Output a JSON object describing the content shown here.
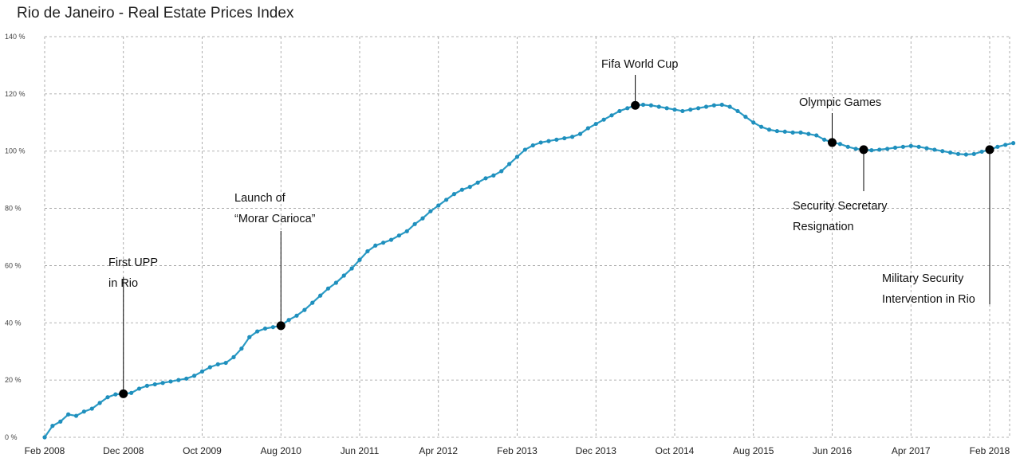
{
  "chart_data": {
    "type": "line",
    "title": "Rio de Janeiro - Real Estate Prices Index",
    "xlabel": "",
    "ylabel": "",
    "ylim": [
      0,
      140
    ],
    "x_range": [
      "Feb 2008",
      "Jun 2018"
    ],
    "grid": true,
    "line_color": "#2a9ac4",
    "y_ticks": [
      "0 %",
      "20 %",
      "40 %",
      "60 %",
      "80 %",
      "100 %",
      "120 %",
      "140 %"
    ],
    "x_ticks": [
      {
        "label": "Feb 2008",
        "x": "2008-02"
      },
      {
        "label": "Dec 2008",
        "x": "2008-12"
      },
      {
        "label": "Oct 2009",
        "x": "2009-10"
      },
      {
        "label": "Aug 2010",
        "x": "2010-08"
      },
      {
        "label": "Jun 2011",
        "x": "2011-06"
      },
      {
        "label": "Apr 2012",
        "x": "2012-04"
      },
      {
        "label": "Feb 2013",
        "x": "2013-02"
      },
      {
        "label": "Dec 2013",
        "x": "2013-12"
      },
      {
        "label": "Oct 2014",
        "x": "2014-10"
      },
      {
        "label": "Aug 2015",
        "x": "2015-08"
      },
      {
        "label": "Jun 2016",
        "x": "2016-06"
      },
      {
        "label": "Apr 2017",
        "x": "2017-04"
      },
      {
        "label": "Feb 2018",
        "x": "2018-02"
      }
    ],
    "series": [
      {
        "points": [
          [
            "2008-02",
            0
          ],
          [
            "2008-03",
            4
          ],
          [
            "2008-04",
            5.5
          ],
          [
            "2008-05",
            8
          ],
          [
            "2008-06",
            7.5
          ],
          [
            "2008-07",
            9
          ],
          [
            "2008-08",
            10
          ],
          [
            "2008-09",
            12
          ],
          [
            "2008-10",
            14
          ],
          [
            "2008-11",
            15
          ],
          [
            "2008-12",
            15.2
          ],
          [
            "2009-01",
            15.5
          ],
          [
            "2009-02",
            17
          ],
          [
            "2009-03",
            18
          ],
          [
            "2009-04",
            18.5
          ],
          [
            "2009-05",
            19
          ],
          [
            "2009-06",
            19.5
          ],
          [
            "2009-07",
            20
          ],
          [
            "2009-08",
            20.5
          ],
          [
            "2009-09",
            21.5
          ],
          [
            "2009-10",
            23
          ],
          [
            "2009-11",
            24.5
          ],
          [
            "2009-12",
            25.5
          ],
          [
            "2010-01",
            26
          ],
          [
            "2010-02",
            28
          ],
          [
            "2010-03",
            31
          ],
          [
            "2010-04",
            35
          ],
          [
            "2010-05",
            37
          ],
          [
            "2010-06",
            38
          ],
          [
            "2010-07",
            38.5
          ],
          [
            "2010-08",
            39
          ],
          [
            "2010-09",
            41
          ],
          [
            "2010-10",
            42.5
          ],
          [
            "2010-11",
            44.5
          ],
          [
            "2010-12",
            47
          ],
          [
            "2011-01",
            49.5
          ],
          [
            "2011-02",
            52
          ],
          [
            "2011-03",
            54
          ],
          [
            "2011-04",
            56.5
          ],
          [
            "2011-05",
            59
          ],
          [
            "2011-06",
            62
          ],
          [
            "2011-07",
            65
          ],
          [
            "2011-08",
            67
          ],
          [
            "2011-09",
            68
          ],
          [
            "2011-10",
            69
          ],
          [
            "2011-11",
            70.5
          ],
          [
            "2011-12",
            72
          ],
          [
            "2012-01",
            74.5
          ],
          [
            "2012-02",
            76.5
          ],
          [
            "2012-03",
            79
          ],
          [
            "2012-04",
            81
          ],
          [
            "2012-05",
            83
          ],
          [
            "2012-06",
            85
          ],
          [
            "2012-07",
            86.5
          ],
          [
            "2012-08",
            87.5
          ],
          [
            "2012-09",
            89
          ],
          [
            "2012-10",
            90.5
          ],
          [
            "2012-11",
            91.5
          ],
          [
            "2012-12",
            93
          ],
          [
            "2013-01",
            95.5
          ],
          [
            "2013-02",
            98
          ],
          [
            "2013-03",
            100.5
          ],
          [
            "2013-04",
            102
          ],
          [
            "2013-05",
            103
          ],
          [
            "2013-06",
            103.5
          ],
          [
            "2013-07",
            104
          ],
          [
            "2013-08",
            104.5
          ],
          [
            "2013-09",
            105
          ],
          [
            "2013-10",
            106
          ],
          [
            "2013-11",
            108
          ],
          [
            "2013-12",
            109.5
          ],
          [
            "2014-01",
            111
          ],
          [
            "2014-02",
            112.5
          ],
          [
            "2014-03",
            114
          ],
          [
            "2014-04",
            115
          ],
          [
            "2014-05",
            116
          ],
          [
            "2014-06",
            116.2
          ],
          [
            "2014-07",
            116
          ],
          [
            "2014-08",
            115.5
          ],
          [
            "2014-09",
            115
          ],
          [
            "2014-10",
            114.5
          ],
          [
            "2014-11",
            114
          ],
          [
            "2014-12",
            114.5
          ],
          [
            "2015-01",
            115
          ],
          [
            "2015-02",
            115.5
          ],
          [
            "2015-03",
            116
          ],
          [
            "2015-04",
            116.2
          ],
          [
            "2015-05",
            115.5
          ],
          [
            "2015-06",
            114
          ],
          [
            "2015-07",
            112
          ],
          [
            "2015-08",
            110
          ],
          [
            "2015-09",
            108.5
          ],
          [
            "2015-10",
            107.5
          ],
          [
            "2015-11",
            107
          ],
          [
            "2015-12",
            106.8
          ],
          [
            "2016-01",
            106.5
          ],
          [
            "2016-02",
            106.5
          ],
          [
            "2016-03",
            106
          ],
          [
            "2016-04",
            105.5
          ],
          [
            "2016-05",
            104
          ],
          [
            "2016-06",
            103
          ],
          [
            "2016-07",
            102.5
          ],
          [
            "2016-08",
            101.5
          ],
          [
            "2016-09",
            100.8
          ],
          [
            "2016-10",
            100.5
          ],
          [
            "2016-11",
            100.3
          ],
          [
            "2016-12",
            100.5
          ],
          [
            "2017-01",
            100.8
          ],
          [
            "2017-02",
            101.2
          ],
          [
            "2017-03",
            101.5
          ],
          [
            "2017-04",
            101.8
          ],
          [
            "2017-05",
            101.5
          ],
          [
            "2017-06",
            101
          ],
          [
            "2017-07",
            100.5
          ],
          [
            "2017-08",
            100
          ],
          [
            "2017-09",
            99.5
          ],
          [
            "2017-10",
            99
          ],
          [
            "2017-11",
            98.8
          ],
          [
            "2017-12",
            99
          ],
          [
            "2018-01",
            99.8
          ],
          [
            "2018-02",
            100.5
          ],
          [
            "2018-03",
            101.5
          ],
          [
            "2018-04",
            102.2
          ],
          [
            "2018-05",
            102.8
          ]
        ]
      }
    ],
    "annotations": [
      {
        "lines": [
          "First UPP",
          "in Rio"
        ],
        "x": "2008-12",
        "y": 15.2,
        "label_pos": "above"
      },
      {
        "lines": [
          "Launch of",
          "“Morar Carioca”"
        ],
        "x": "2010-08",
        "y": 39,
        "label_pos": "above"
      },
      {
        "lines": [
          "Fifa World Cup"
        ],
        "x": "2014-05",
        "y": 116,
        "label_pos": "above"
      },
      {
        "lines": [
          "Olympic Games"
        ],
        "x": "2016-06",
        "y": 103,
        "label_pos": "above"
      },
      {
        "lines": [
          "Security Secretary",
          "Resignation"
        ],
        "x": "2016-10",
        "y": 100.5,
        "label_pos": "below"
      },
      {
        "lines": [
          "Military Security",
          "Intervention in Rio"
        ],
        "x": "2018-02",
        "y": 100.5,
        "label_pos": "below"
      }
    ]
  }
}
